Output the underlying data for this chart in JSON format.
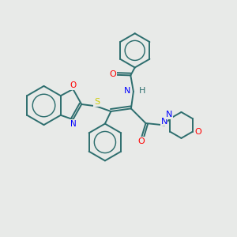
{
  "bg_color": "#e8eae8",
  "bond_color": "#2d6e6e",
  "atom_colors": {
    "O": "#ff0000",
    "N": "#0000ff",
    "S": "#cccc00",
    "C": "#2d6e6e",
    "H": "#2d6e6e"
  }
}
